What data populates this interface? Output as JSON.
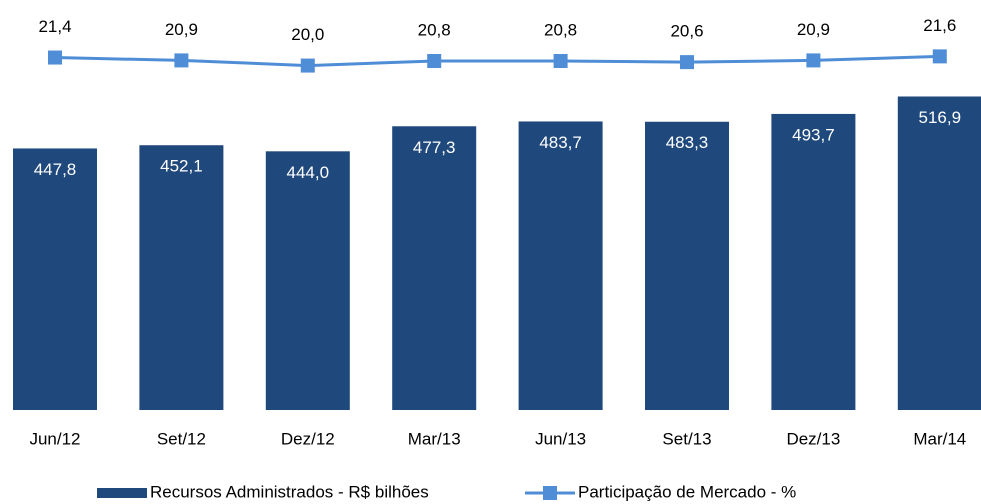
{
  "chart_data": {
    "type": "bar_line",
    "categories": [
      "Jun/12",
      "Set/12",
      "Dez/12",
      "Mar/13",
      "Jun/13",
      "Set/13",
      "Dez/13",
      "Mar/14"
    ],
    "series": [
      {
        "name": "Recursos Administrados - R$ bilhões",
        "type": "bar",
        "color": "#1f487c",
        "values": [
          447.8,
          452.1,
          444.0,
          477.3,
          483.7,
          483.3,
          493.7,
          516.9
        ],
        "value_labels": [
          "447,8",
          "452,1",
          "444,0",
          "477,3",
          "483,7",
          "483,3",
          "493,7",
          "516,9"
        ]
      },
      {
        "name": "Participação de Mercado - %",
        "type": "line",
        "axis": "y2",
        "color": "#4f8ed6",
        "values": [
          21.4,
          20.9,
          20.0,
          20.8,
          20.8,
          20.6,
          20.9,
          21.6
        ],
        "value_labels": [
          "21,4",
          "20,9",
          "20,0",
          "20,8",
          "20,8",
          "20,6",
          "20,9",
          "21,6"
        ]
      }
    ],
    "ylim": [
      100,
      600
    ],
    "y2lim": [
      -40,
      25.5
    ],
    "grid": false,
    "legend": "bottom"
  }
}
